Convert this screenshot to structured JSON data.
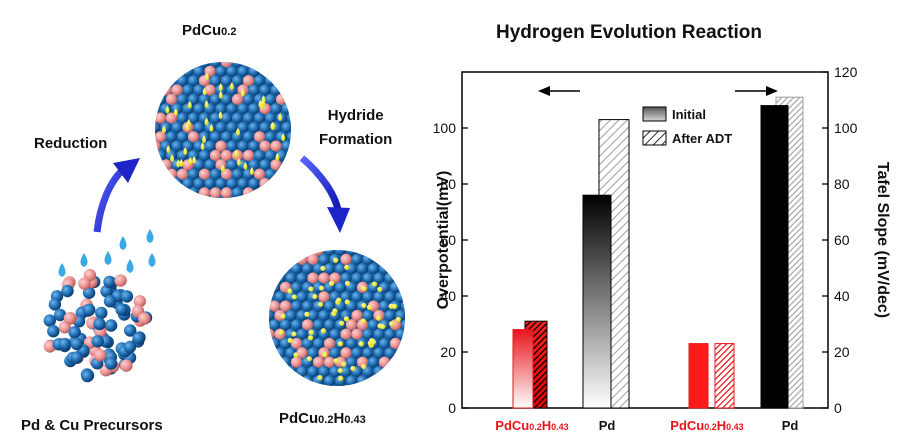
{
  "scheme": {
    "top_label": {
      "main": "PdCu",
      "sub": "0.2"
    },
    "reduction_label": "Reduction",
    "hydride_label_line1": "Hydride",
    "hydride_label_line2": "Formation",
    "precursor_label": "Pd & Cu Precursors",
    "bottom_right_label": {
      "p1": "PdCu",
      "s1": "0.2",
      "p2": "H",
      "s2": "0.43"
    },
    "colors": {
      "pd_atom": "#1f6fb5",
      "cu_atom": "#e98f8f",
      "hydrogen": "#f2f21a",
      "drop": "#39a9e8",
      "arrow": "#1d24c8"
    }
  },
  "chart_data": {
    "type": "bar",
    "title": "Hydrogen Evolution Reaction",
    "ylabel_left": "Overpotential(mV)",
    "ylabel_right": "Tafel Slope (mV/dec)",
    "ylim_left": [
      0,
      120
    ],
    "ylim_right": [
      0,
      120
    ],
    "yticks_left": [
      "0",
      "20",
      "40",
      "60",
      "80",
      "100"
    ],
    "yticks_right": [
      "0",
      "20",
      "40",
      "60",
      "80",
      "100",
      "120"
    ],
    "legend": [
      "Initial",
      "After ADT"
    ],
    "legend_position": "top-center",
    "groups": [
      {
        "label": {
          "p1": "PdCu",
          "s1": "0.2",
          "p2": "H",
          "s2": "0.43"
        },
        "axis": "left",
        "color": "#e8141c",
        "initial": 28,
        "after_adt": 31
      },
      {
        "label": "Pd",
        "axis": "left",
        "color": "#000000",
        "initial": 76,
        "after_adt": 103
      },
      {
        "label": {
          "p1": "PdCu",
          "s1": "0.2",
          "p2": "H",
          "s2": "0.43"
        },
        "axis": "right",
        "color": "#e8141c",
        "initial": 23,
        "after_adt": 23
      },
      {
        "label": "Pd",
        "axis": "right",
        "color": "#000000",
        "initial": 108,
        "after_adt": 111
      }
    ]
  }
}
